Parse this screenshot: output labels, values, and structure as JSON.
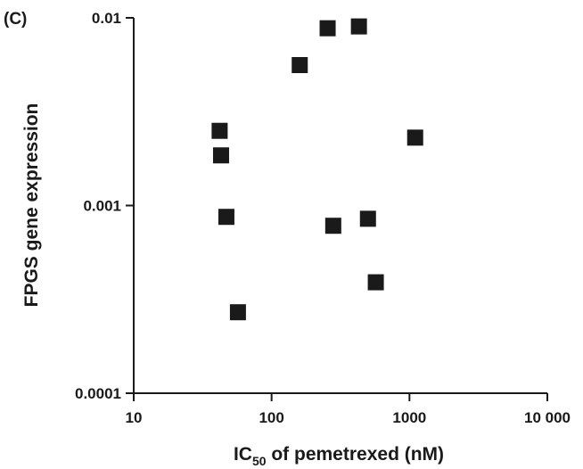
{
  "panel_label": "(C)",
  "chart_data": {
    "type": "scatter",
    "xlabel_main": "IC",
    "xlabel_sub": "50",
    "xlabel_rest": " of pemetrexed (nM)",
    "ylabel": "FPGS gene expression",
    "xscale": "log",
    "yscale": "log",
    "xlim": [
      10,
      10000
    ],
    "ylim": [
      0.0001,
      0.01
    ],
    "x_ticks": [
      10,
      100,
      1000,
      10000
    ],
    "x_tick_labels": [
      "10",
      "100",
      "1000",
      "10 000"
    ],
    "y_ticks": [
      0.0001,
      0.001,
      0.01
    ],
    "y_tick_labels": [
      "0.0001",
      "0.001",
      "0.01"
    ],
    "grid": false,
    "marker": "square",
    "color": "#1a1a1a",
    "points": [
      {
        "x": 42,
        "y": 0.0025
      },
      {
        "x": 43,
        "y": 0.00185
      },
      {
        "x": 47,
        "y": 0.00087
      },
      {
        "x": 57,
        "y": 0.00027
      },
      {
        "x": 160,
        "y": 0.0056
      },
      {
        "x": 255,
        "y": 0.0088
      },
      {
        "x": 280,
        "y": 0.00078
      },
      {
        "x": 430,
        "y": 0.009
      },
      {
        "x": 500,
        "y": 0.00085
      },
      {
        "x": 570,
        "y": 0.00039
      },
      {
        "x": 1100,
        "y": 0.0023
      }
    ]
  }
}
